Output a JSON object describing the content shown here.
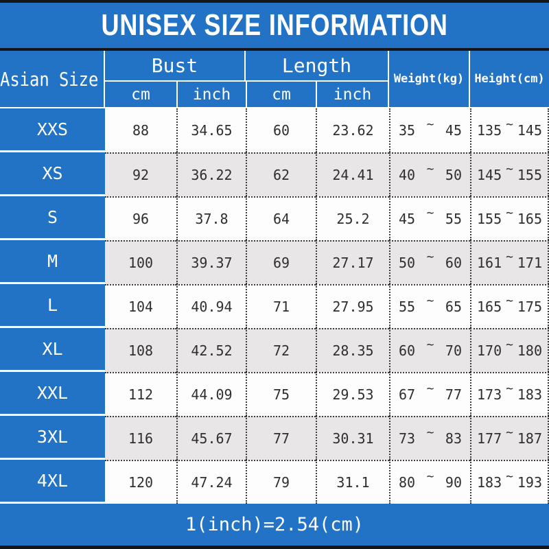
{
  "title": "UNISEX SIZE INFORMATION",
  "colors": {
    "blue": "#2273c5",
    "row_white": "#fdfdfd",
    "row_gray": "#e8e6e7",
    "line_black": "#161616",
    "text_dark": "#2e2e2e"
  },
  "table": {
    "corner_header": "Asian Size",
    "group_bust": "Bust",
    "group_length": "Length",
    "unit_bust_cm": "cm",
    "unit_bust_inch": "inch",
    "unit_length_cm": "cm",
    "unit_length_inch": "inch",
    "weight_header": "Weight(kg)",
    "height_header": "Height(cm)",
    "range_separator": "~",
    "rows": [
      {
        "size": "XXS",
        "bust_cm": "88",
        "bust_inch": "34.65",
        "length_cm": "60",
        "length_inch": "23.62",
        "weight_min": "35",
        "weight_max": "45",
        "height_min": "135",
        "height_max": "145"
      },
      {
        "size": "XS",
        "bust_cm": "92",
        "bust_inch": "36.22",
        "length_cm": "62",
        "length_inch": "24.41",
        "weight_min": "40",
        "weight_max": "50",
        "height_min": "145",
        "height_max": "155"
      },
      {
        "size": "S",
        "bust_cm": "96",
        "bust_inch": "37.8",
        "length_cm": "64",
        "length_inch": "25.2",
        "weight_min": "45",
        "weight_max": "55",
        "height_min": "155",
        "height_max": "165"
      },
      {
        "size": "M",
        "bust_cm": "100",
        "bust_inch": "39.37",
        "length_cm": "69",
        "length_inch": "27.17",
        "weight_min": "50",
        "weight_max": "60",
        "height_min": "161",
        "height_max": "171"
      },
      {
        "size": "L",
        "bust_cm": "104",
        "bust_inch": "40.94",
        "length_cm": "71",
        "length_inch": "27.95",
        "weight_min": "55",
        "weight_max": "65",
        "height_min": "165",
        "height_max": "175"
      },
      {
        "size": "XL",
        "bust_cm": "108",
        "bust_inch": "42.52",
        "length_cm": "72",
        "length_inch": "28.35",
        "weight_min": "60",
        "weight_max": "70",
        "height_min": "170",
        "height_max": "180"
      },
      {
        "size": "XXL",
        "bust_cm": "112",
        "bust_inch": "44.09",
        "length_cm": "75",
        "length_inch": "29.53",
        "weight_min": "67",
        "weight_max": "77",
        "height_min": "173",
        "height_max": "183"
      },
      {
        "size": "3XL",
        "bust_cm": "116",
        "bust_inch": "45.67",
        "length_cm": "77",
        "length_inch": "30.31",
        "weight_min": "73",
        "weight_max": "83",
        "height_min": "177",
        "height_max": "187"
      },
      {
        "size": "4XL",
        "bust_cm": "120",
        "bust_inch": "47.24",
        "length_cm": "79",
        "length_inch": "31.1",
        "weight_min": "80",
        "weight_max": "90",
        "height_min": "183",
        "height_max": "193"
      }
    ]
  },
  "footer": {
    "note": "1(inch)=2.54(cm)"
  }
}
